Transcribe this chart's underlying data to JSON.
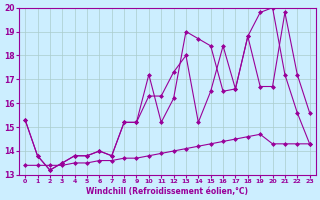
{
  "xlabel": "Windchill (Refroidissement éolien,°C)",
  "xlim": [
    -0.5,
    23.5
  ],
  "ylim": [
    13,
    20
  ],
  "xticks": [
    0,
    1,
    2,
    3,
    4,
    5,
    6,
    7,
    8,
    9,
    10,
    11,
    12,
    13,
    14,
    15,
    16,
    17,
    18,
    19,
    20,
    21,
    22,
    23
  ],
  "yticks": [
    13,
    14,
    15,
    16,
    17,
    18,
    19,
    20
  ],
  "color": "#990099",
  "bg_color": "#cceeff",
  "grid_color": "#aacccc",
  "line1_x": [
    0,
    1,
    2,
    3,
    4,
    5,
    6,
    7,
    8,
    9,
    10,
    11,
    12,
    13,
    14,
    15,
    16,
    17,
    18,
    19,
    20,
    21,
    22,
    23
  ],
  "line1_y": [
    15.3,
    13.8,
    13.2,
    13.5,
    13.8,
    13.8,
    14.0,
    13.8,
    15.2,
    15.2,
    17.2,
    15.2,
    16.2,
    19.0,
    18.7,
    18.4,
    16.5,
    16.6,
    18.8,
    16.7,
    16.7,
    19.8,
    17.2,
    15.6
  ],
  "line2_x": [
    0,
    1,
    2,
    3,
    4,
    5,
    6,
    7,
    8,
    9,
    10,
    11,
    12,
    13,
    14,
    15,
    16,
    17,
    18,
    19,
    20,
    21,
    22,
    23
  ],
  "line2_y": [
    15.3,
    13.8,
    13.2,
    13.5,
    13.8,
    13.8,
    14.0,
    13.8,
    15.2,
    15.2,
    16.3,
    16.3,
    17.3,
    18.0,
    15.2,
    16.5,
    18.4,
    16.6,
    18.8,
    19.8,
    20.0,
    17.2,
    15.6,
    14.3
  ],
  "line3_x": [
    0,
    1,
    2,
    3,
    4,
    5,
    6,
    7,
    8,
    9,
    10,
    11,
    12,
    13,
    14,
    15,
    16,
    17,
    18,
    19,
    20,
    21,
    22,
    23
  ],
  "line3_y": [
    13.4,
    13.4,
    13.4,
    13.4,
    13.5,
    13.5,
    13.6,
    13.6,
    13.7,
    13.7,
    13.8,
    13.9,
    14.0,
    14.1,
    14.2,
    14.3,
    14.4,
    14.5,
    14.6,
    14.7,
    14.3,
    14.3,
    14.3,
    14.3
  ]
}
